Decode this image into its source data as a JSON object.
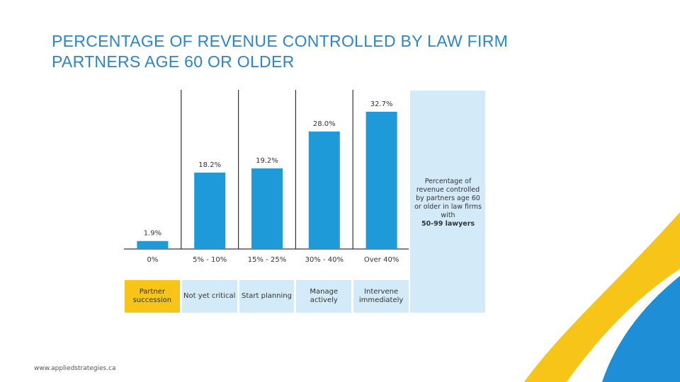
{
  "chart_data": {
    "type": "bar",
    "title": "PERCENTAGE OF REVENUE CONTROLLED BY LAW FIRM PARTNERS AGE 60 OR OLDER",
    "categories": [
      "0%",
      "5% - 10%",
      "15% - 25%",
      "30% - 40%",
      "Over 40%"
    ],
    "values": [
      1.9,
      18.2,
      19.2,
      28.0,
      32.7
    ],
    "value_labels": [
      "1.9%",
      "18.2%",
      "19.2%",
      "28.0%",
      "32.7%"
    ],
    "stages": [
      "Partner succession",
      "Not yet critical",
      "Start planning",
      "Manage actively",
      "Intervene immediately"
    ],
    "color": "#1e9ad9",
    "note": "Percentage of revenue controlled by partners age 60 or older in law firms with",
    "note_bold": "50-99 lawyers"
  },
  "footer": "www.appliedstrategies.ca"
}
